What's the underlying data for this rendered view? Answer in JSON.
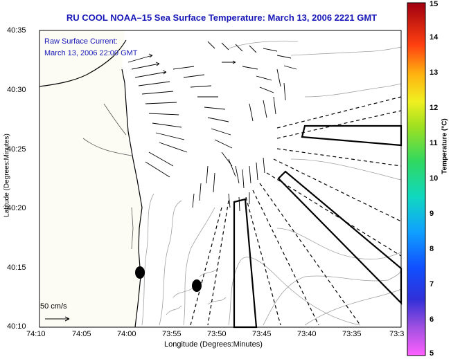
{
  "title": "RU COOL   NOAA–15  Sea Surface Temperature:  March 13, 2006 2221 GMT",
  "overlay": {
    "line1": "Raw Surface Current:",
    "line2": "March 13, 2006 22:00 GMT"
  },
  "axes": {
    "xlabel": "Longitude (Degrees:Minutes)",
    "ylabel": "Latitude (Degrees:Minutes)",
    "x_ticks": [
      "74:10",
      "74:05",
      "74:00",
      "73:55",
      "73:50",
      "73:45",
      "73:40",
      "73:35",
      "73:3"
    ],
    "y_ticks": [
      "40:35",
      "40:30",
      "40:25",
      "40:20",
      "40:15",
      "40:10"
    ]
  },
  "scale": {
    "label": "50 cm/s"
  },
  "colorbar": {
    "title": "Temperature (°C)",
    "ticks": [
      "15",
      "14",
      "13",
      "12",
      "11",
      "10",
      "9",
      "8",
      "7",
      "6",
      "5"
    ],
    "min": 5,
    "max": 15
  },
  "colors": {
    "title": "#1818b8",
    "land": "#fcfcf4",
    "coast": "#000000",
    "contour": "#a0a0a0"
  }
}
